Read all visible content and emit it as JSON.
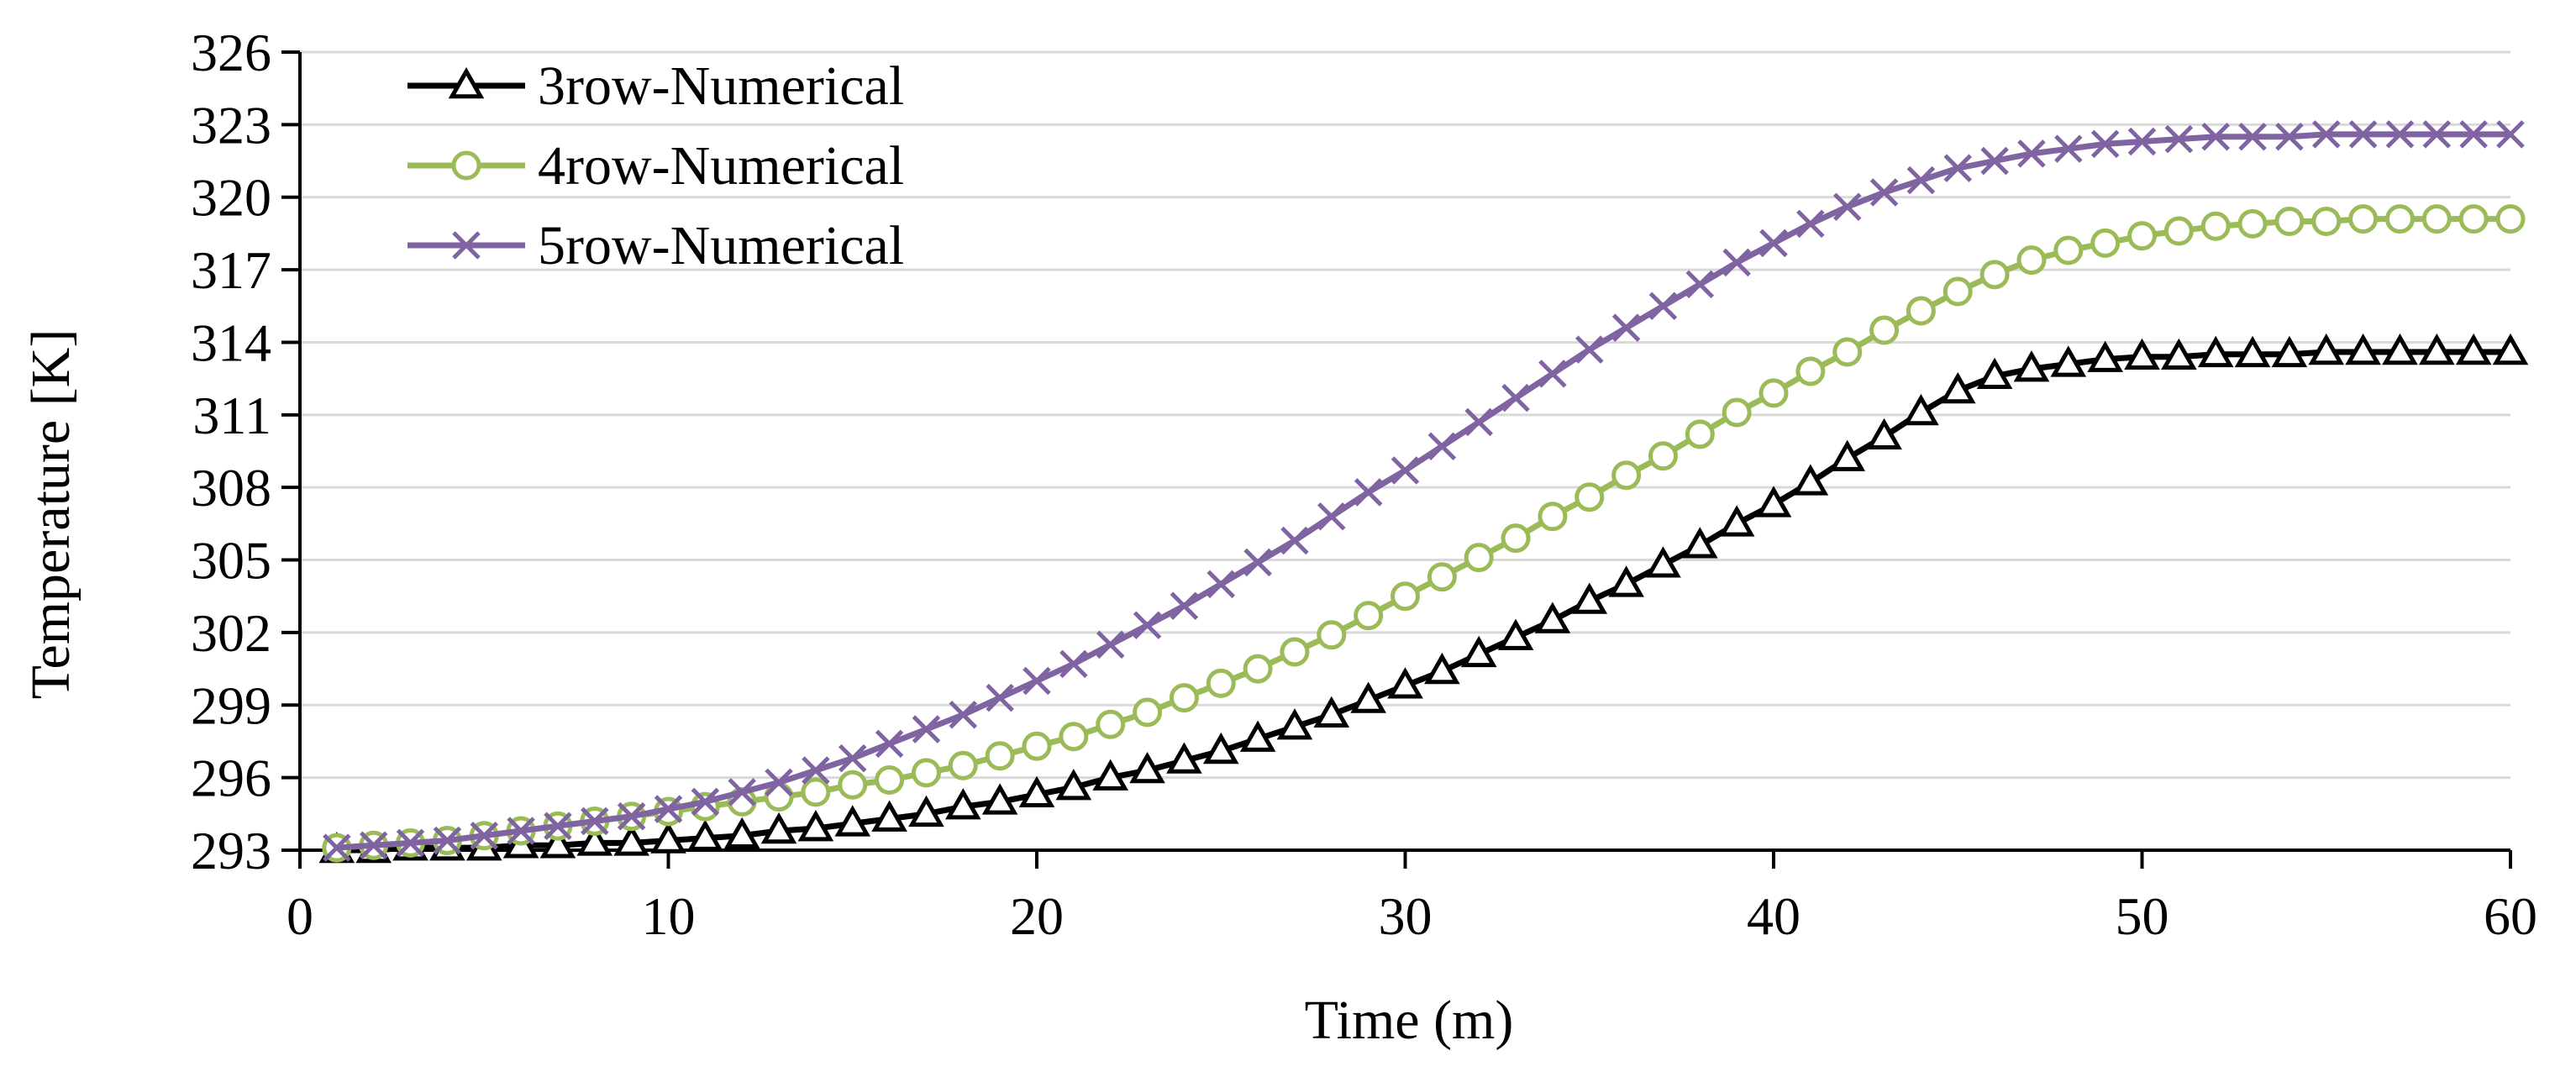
{
  "chart_data": {
    "type": "line",
    "title": "",
    "xlabel": "Time (m)",
    "ylabel": "Temperature [K]",
    "xlim": [
      0,
      60
    ],
    "ylim": [
      293,
      326
    ],
    "xticks": [
      0,
      10,
      20,
      30,
      40,
      50,
      60
    ],
    "yticks": [
      293,
      296,
      299,
      302,
      305,
      308,
      311,
      314,
      317,
      320,
      323,
      326
    ],
    "grid": "horizontal",
    "legend_position": "top-left",
    "x": [
      1,
      2,
      3,
      4,
      5,
      6,
      7,
      8,
      9,
      10,
      11,
      12,
      13,
      14,
      15,
      16,
      17,
      18,
      19,
      20,
      21,
      22,
      23,
      24,
      25,
      26,
      27,
      28,
      29,
      30,
      31,
      32,
      33,
      34,
      35,
      36,
      37,
      38,
      39,
      40,
      41,
      42,
      43,
      44,
      45,
      46,
      47,
      48,
      49,
      50,
      51,
      52,
      53,
      54,
      55,
      56,
      57,
      58,
      59,
      60
    ],
    "series": [
      {
        "name": "3row-Numerical",
        "marker": "triangle",
        "color": "#000000",
        "values": [
          293.0,
          293.0,
          293.1,
          293.1,
          293.1,
          293.2,
          293.2,
          293.3,
          293.3,
          293.4,
          293.5,
          293.6,
          293.8,
          293.9,
          294.1,
          294.3,
          294.5,
          294.8,
          295.0,
          295.3,
          295.6,
          296.0,
          296.3,
          296.7,
          297.1,
          297.6,
          298.1,
          298.6,
          299.2,
          299.8,
          300.4,
          301.1,
          301.8,
          302.5,
          303.3,
          304.0,
          304.8,
          305.6,
          306.5,
          307.3,
          308.2,
          309.2,
          310.1,
          311.1,
          312.0,
          312.6,
          312.9,
          313.1,
          313.3,
          313.4,
          313.4,
          313.5,
          313.5,
          313.5,
          313.6,
          313.6,
          313.6,
          313.6,
          313.6,
          313.6
        ]
      },
      {
        "name": "4row-Numerical",
        "marker": "circle",
        "color": "#9bbb59",
        "values": [
          293.1,
          293.2,
          293.3,
          293.4,
          293.6,
          293.8,
          294.0,
          294.2,
          294.4,
          294.6,
          294.8,
          295.0,
          295.2,
          295.4,
          295.7,
          295.9,
          296.2,
          296.5,
          296.9,
          297.3,
          297.7,
          298.2,
          298.7,
          299.3,
          299.9,
          300.5,
          301.2,
          301.9,
          302.7,
          303.5,
          304.3,
          305.1,
          305.9,
          306.8,
          307.6,
          308.5,
          309.3,
          310.2,
          311.1,
          311.9,
          312.8,
          313.6,
          314.5,
          315.3,
          316.1,
          316.8,
          317.4,
          317.8,
          318.1,
          318.4,
          318.6,
          318.8,
          318.9,
          319.0,
          319.0,
          319.1,
          319.1,
          319.1,
          319.1,
          319.1
        ]
      },
      {
        "name": "5row-Numerical",
        "marker": "x",
        "color": "#8064a2",
        "values": [
          293.1,
          293.2,
          293.3,
          293.4,
          293.6,
          293.8,
          294.0,
          294.2,
          294.4,
          294.7,
          295.0,
          295.4,
          295.8,
          296.3,
          296.8,
          297.4,
          298.0,
          298.6,
          299.3,
          300.0,
          300.7,
          301.5,
          302.3,
          303.1,
          304.0,
          304.9,
          305.8,
          306.8,
          307.8,
          308.7,
          309.7,
          310.7,
          311.7,
          312.7,
          313.7,
          314.6,
          315.5,
          316.4,
          317.3,
          318.1,
          318.9,
          319.6,
          320.2,
          320.7,
          321.2,
          321.5,
          321.8,
          322.0,
          322.2,
          322.3,
          322.4,
          322.5,
          322.5,
          322.5,
          322.6,
          322.6,
          322.6,
          322.6,
          322.6,
          322.6
        ]
      }
    ]
  }
}
